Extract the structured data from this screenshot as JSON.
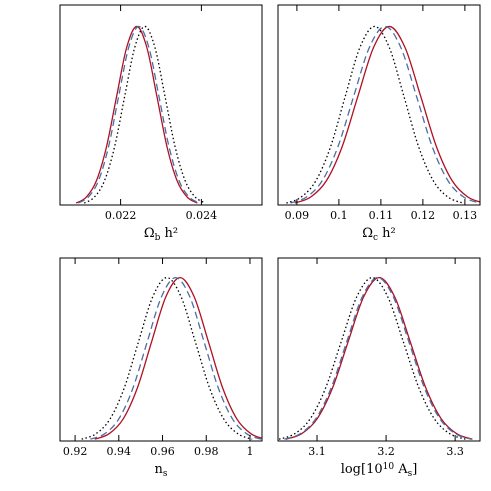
{
  "chart_data": [
    {
      "type": "line",
      "xlabel": [
        {
          "text": "Ω"
        },
        {
          "text": "b",
          "sub": true
        },
        {
          "text": " h²"
        }
      ],
      "xlim": [
        0.0205,
        0.0255
      ],
      "xticks": [
        0.022,
        0.024
      ],
      "ylim": [
        0,
        1.12
      ],
      "series": [
        {
          "color": "#b01020",
          "dash": "none",
          "x": [
            0.0209,
            0.02115,
            0.0214,
            0.02165,
            0.0219,
            0.02215,
            0.0224,
            0.02265,
            0.0229,
            0.02315,
            0.0234,
            0.02365,
            0.0239
          ],
          "values": [
            0.011,
            0.044,
            0.135,
            0.325,
            0.607,
            0.882,
            1,
            0.882,
            0.607,
            0.325,
            0.135,
            0.044,
            0.011
          ]
        },
        {
          "color": "#4a6fa5",
          "dash": "7 4",
          "x": [
            0.02095,
            0.0212,
            0.02145,
            0.0217,
            0.02195,
            0.0222,
            0.02245,
            0.0227,
            0.02295,
            0.0232,
            0.02345,
            0.0237,
            0.02395
          ],
          "values": [
            0.011,
            0.044,
            0.135,
            0.325,
            0.607,
            0.882,
            1,
            0.882,
            0.607,
            0.325,
            0.135,
            0.044,
            0.011
          ]
        },
        {
          "color": "#000000",
          "dash": "1.5 2.5",
          "x": [
            0.0211,
            0.02135,
            0.0216,
            0.02185,
            0.0221,
            0.02235,
            0.0226,
            0.02285,
            0.0231,
            0.02335,
            0.0236,
            0.02385,
            0.0241
          ],
          "values": [
            0.011,
            0.044,
            0.135,
            0.325,
            0.607,
            0.882,
            1,
            0.882,
            0.607,
            0.325,
            0.135,
            0.044,
            0.011
          ]
        }
      ]
    },
    {
      "type": "line",
      "xlabel": [
        {
          "text": "Ω"
        },
        {
          "text": "c",
          "sub": true
        },
        {
          "text": " h²"
        }
      ],
      "xlim": [
        0.0855,
        0.1336
      ],
      "xticks": [
        0.09,
        0.1,
        0.11,
        0.12,
        0.13
      ],
      "ylim": [
        0,
        1.12
      ],
      "series": [
        {
          "color": "#b01020",
          "dash": "none",
          "x": [
            0.0895,
            0.09325,
            0.097,
            0.10075,
            0.1045,
            0.10825,
            0.112,
            0.11575,
            0.1195,
            0.12325,
            0.127,
            0.13075,
            0.1345
          ],
          "values": [
            0.011,
            0.044,
            0.135,
            0.325,
            0.607,
            0.882,
            1,
            0.882,
            0.607,
            0.325,
            0.135,
            0.044,
            0.011
          ]
        },
        {
          "color": "#4a6fa5",
          "dash": "7 4",
          "x": [
            0.0885,
            0.09225,
            0.096,
            0.09975,
            0.1035,
            0.10725,
            0.111,
            0.11475,
            0.1185,
            0.12225,
            0.126,
            0.12975,
            0.1335
          ],
          "values": [
            0.011,
            0.044,
            0.135,
            0.325,
            0.607,
            0.882,
            1,
            0.882,
            0.607,
            0.325,
            0.135,
            0.044,
            0.011
          ]
        },
        {
          "color": "#000000",
          "dash": "1.5 2.5",
          "x": [
            0.0875,
            0.091,
            0.0945,
            0.098,
            0.1015,
            0.105,
            0.1085,
            0.112,
            0.1155,
            0.119,
            0.1225,
            0.126,
            0.1295
          ],
          "values": [
            0.011,
            0.044,
            0.135,
            0.325,
            0.607,
            0.882,
            1,
            0.882,
            0.607,
            0.325,
            0.135,
            0.044,
            0.011
          ]
        }
      ]
    },
    {
      "type": "line",
      "xlabel": [
        {
          "text": "n"
        },
        {
          "text": "s",
          "sub": true
        }
      ],
      "xlim": [
        0.9131,
        1.0055
      ],
      "xticks": [
        0.92,
        0.94,
        0.96,
        0.98,
        1
      ],
      "ylim": [
        0,
        1.12
      ],
      "series": [
        {
          "color": "#b01020",
          "dash": "none",
          "x": [
            0.929,
            0.9355,
            0.942,
            0.9485,
            0.955,
            0.9615,
            0.968,
            0.9745,
            0.981,
            0.9875,
            0.994,
            1.0005,
            1.007
          ],
          "values": [
            0.011,
            0.044,
            0.135,
            0.325,
            0.607,
            0.882,
            1,
            0.882,
            0.607,
            0.325,
            0.135,
            0.044,
            0.011
          ]
        },
        {
          "color": "#4a6fa5",
          "dash": "7 4",
          "x": [
            0.927,
            0.9335,
            0.94,
            0.9465,
            0.953,
            0.9595,
            0.966,
            0.9725,
            0.979,
            0.9855,
            0.992,
            0.9985,
            1.005
          ],
          "values": [
            0.011,
            0.044,
            0.135,
            0.325,
            0.607,
            0.882,
            1,
            0.882,
            0.607,
            0.325,
            0.135,
            0.044,
            0.011
          ]
        },
        {
          "color": "#000000",
          "dash": "1.5 2.5",
          "x": [
            0.923,
            0.9295,
            0.936,
            0.9425,
            0.949,
            0.9555,
            0.962,
            0.9685,
            0.975,
            0.9815,
            0.988,
            0.9945,
            1.001
          ],
          "values": [
            0.011,
            0.044,
            0.135,
            0.325,
            0.607,
            0.882,
            1,
            0.882,
            0.607,
            0.325,
            0.135,
            0.044,
            0.011
          ]
        }
      ]
    },
    {
      "type": "line",
      "xlabel": [
        {
          "text": "log[10"
        },
        {
          "text": "10",
          "sup": true
        },
        {
          "text": " A"
        },
        {
          "text": "s",
          "sub": true
        },
        {
          "text": "]"
        }
      ],
      "xlim": [
        3.0435,
        3.336
      ],
      "xticks": [
        3.1,
        3.2,
        3.3
      ],
      "ylim": [
        0,
        1.12
      ],
      "series": [
        {
          "color": "#b01020",
          "dash": "none",
          "x": [
            3.055,
            3.0775,
            3.1,
            3.1225,
            3.145,
            3.1675,
            3.19,
            3.2125,
            3.235,
            3.2575,
            3.28,
            3.3025,
            3.325
          ],
          "values": [
            0.011,
            0.044,
            0.135,
            0.325,
            0.607,
            0.882,
            1,
            0.882,
            0.607,
            0.325,
            0.135,
            0.044,
            0.011
          ]
        },
        {
          "color": "#4a6fa5",
          "dash": "7 4",
          "x": [
            3.053,
            3.0755,
            3.098,
            3.1205,
            3.143,
            3.1655,
            3.188,
            3.2105,
            3.233,
            3.2555,
            3.278,
            3.3005,
            3.323
          ],
          "values": [
            0.011,
            0.044,
            0.135,
            0.325,
            0.607,
            0.882,
            1,
            0.882,
            0.607,
            0.325,
            0.135,
            0.044,
            0.011
          ]
        },
        {
          "color": "#000000",
          "dash": "1.5 2.5",
          "x": [
            3.045,
            3.0675,
            3.09,
            3.1125,
            3.135,
            3.1575,
            3.18,
            3.2025,
            3.225,
            3.2475,
            3.27,
            3.2925,
            3.315
          ],
          "values": [
            0.011,
            0.044,
            0.135,
            0.325,
            0.607,
            0.882,
            1,
            0.882,
            0.607,
            0.325,
            0.135,
            0.044,
            0.011
          ]
        }
      ]
    }
  ]
}
